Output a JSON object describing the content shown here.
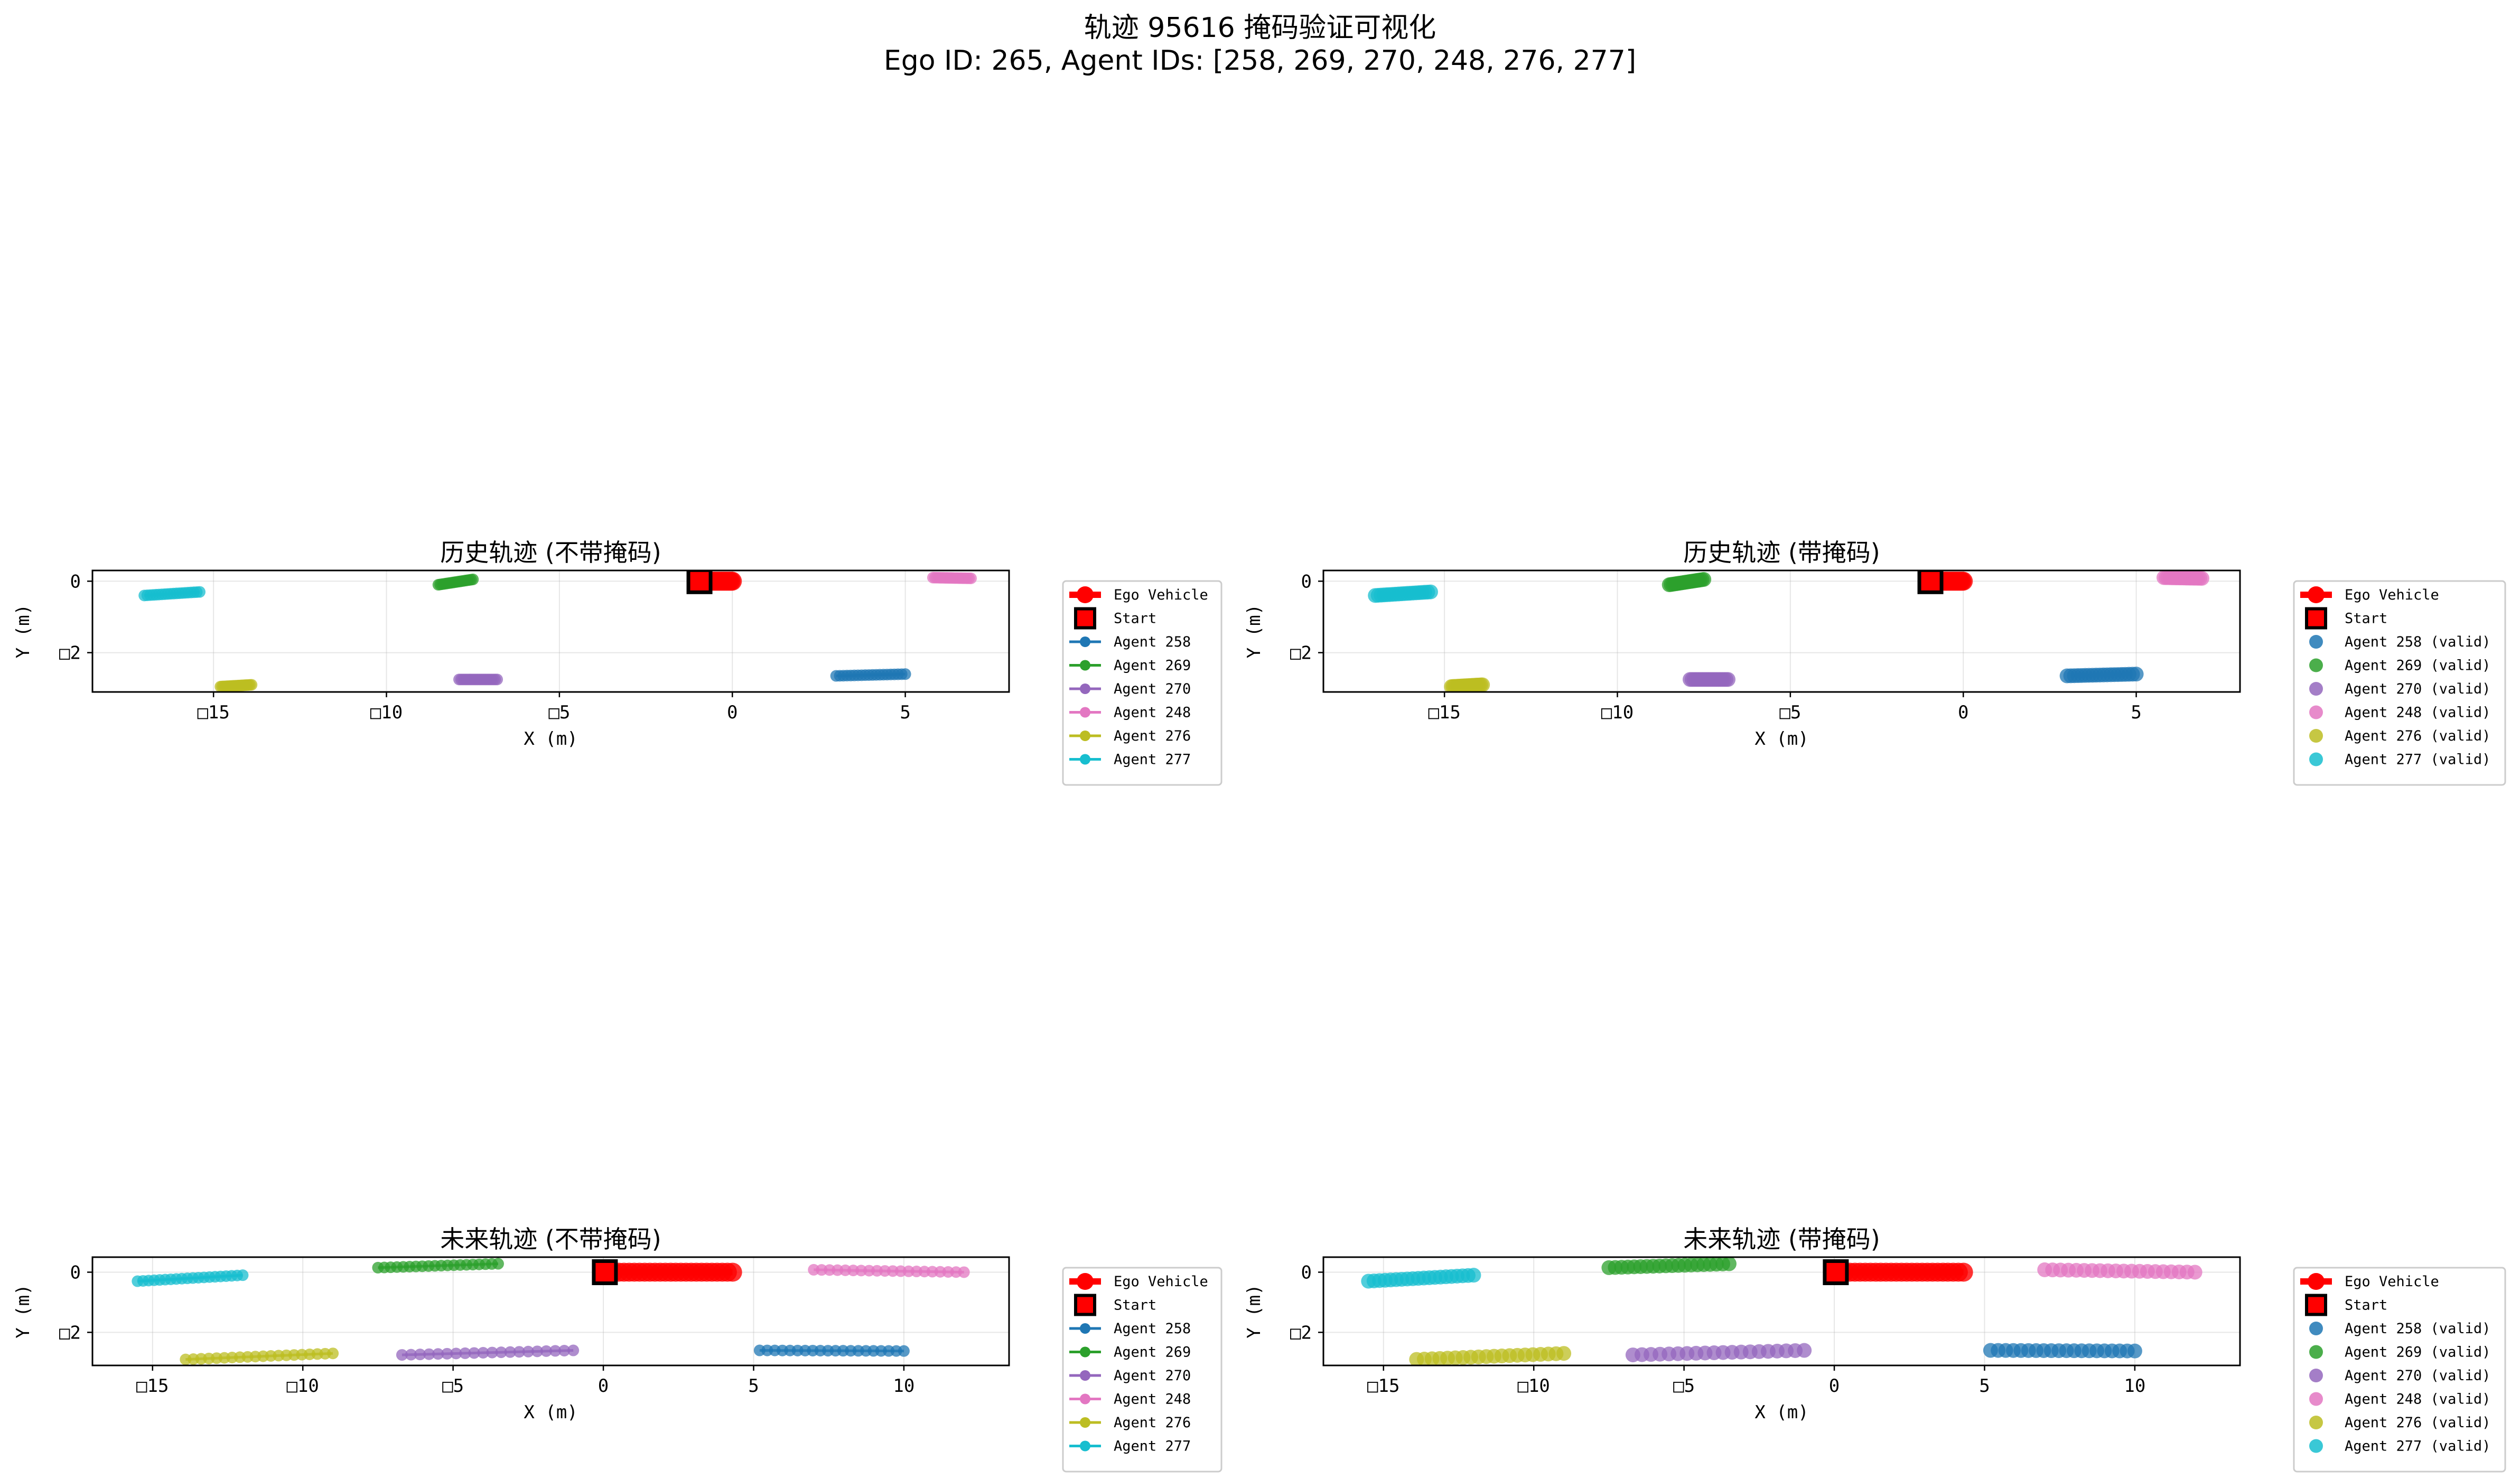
{
  "figure": {
    "title_line1": "轨迹 95616 掩码验证可视化",
    "title_line2": "Ego ID: 265, Agent IDs: [258, 269, 270, 248, 276, 277]"
  },
  "colors": {
    "ego": "#ff0000",
    "start_fill": "#ff0000",
    "start_edge": "#000000",
    "agents": {
      "258": "#1f77b4",
      "269": "#2ca02c",
      "270": "#9467bd",
      "248": "#e377c2",
      "276": "#bcbd22",
      "277": "#17becf"
    }
  },
  "chart_data": [
    {
      "type": "line",
      "title": "历史轨迹 (不带掩码)",
      "xlabel": "X (m)",
      "ylabel": "Y (m)",
      "xlim": [
        -18.5,
        8
      ],
      "ylim": [
        -3.1,
        0.3
      ],
      "xticks": [
        -15,
        -10,
        -5,
        0,
        5
      ],
      "xtick_labels": [
        "□15",
        "□10",
        "□5",
        "0",
        "5"
      ],
      "yticks": [
        0,
        -2
      ],
      "ytick_labels": [
        "0",
        "□2"
      ],
      "grid": true,
      "legend_placement": "outside-right",
      "legend": [
        "Ego Vehicle",
        "Start",
        "Agent 258",
        "Agent 269",
        "Agent 270",
        "Agent 248",
        "Agent 276",
        "Agent 277"
      ],
      "ego": {
        "x_start": -1.0,
        "x_end": 0.0,
        "y": 0.0
      },
      "start": {
        "x": -0.95,
        "y": 0.0
      },
      "series": [
        {
          "name": "Agent 258",
          "x_start": 3.0,
          "x_end": 5.0,
          "y_start": -2.65,
          "y_end": -2.6
        },
        {
          "name": "Agent 269",
          "x_start": -8.5,
          "x_end": -7.5,
          "y_start": -0.1,
          "y_end": 0.05
        },
        {
          "name": "Agent 270",
          "x_start": -7.9,
          "x_end": -6.8,
          "y_start": -2.75,
          "y_end": -2.75
        },
        {
          "name": "Agent 248",
          "x_start": 5.8,
          "x_end": 6.9,
          "y_start": 0.1,
          "y_end": 0.08
        },
        {
          "name": "Agent 276",
          "x_start": -14.8,
          "x_end": -13.9,
          "y_start": -2.95,
          "y_end": -2.9
        },
        {
          "name": "Agent 277",
          "x_start": -17.0,
          "x_end": -15.4,
          "y_start": -0.4,
          "y_end": -0.3
        }
      ]
    },
    {
      "type": "scatter",
      "title": "历史轨迹 (带掩码)",
      "xlabel": "X (m)",
      "ylabel": "Y (m)",
      "xlim": [
        -18.5,
        8
      ],
      "ylim": [
        -3.1,
        0.3
      ],
      "xticks": [
        -15,
        -10,
        -5,
        0,
        5
      ],
      "xtick_labels": [
        "□15",
        "□10",
        "□5",
        "0",
        "5"
      ],
      "yticks": [
        0,
        -2
      ],
      "ytick_labels": [
        "0",
        "□2"
      ],
      "grid": true,
      "legend_placement": "outside-right",
      "legend": [
        "Ego Vehicle",
        "Start",
        "Agent 258 (valid)",
        "Agent 269 (valid)",
        "Agent 270 (valid)",
        "Agent 248 (valid)",
        "Agent 276 (valid)",
        "Agent 277 (valid)"
      ],
      "ego": {
        "x_start": -1.0,
        "x_end": 0.0,
        "y": 0.0
      },
      "start": {
        "x": -0.95,
        "y": 0.0
      },
      "series": [
        {
          "name": "Agent 258 (valid)",
          "x_start": 3.0,
          "x_end": 5.0,
          "y_start": -2.65,
          "y_end": -2.6
        },
        {
          "name": "Agent 269 (valid)",
          "x_start": -8.5,
          "x_end": -7.5,
          "y_start": -0.1,
          "y_end": 0.05
        },
        {
          "name": "Agent 270 (valid)",
          "x_start": -7.9,
          "x_end": -6.8,
          "y_start": -2.75,
          "y_end": -2.75
        },
        {
          "name": "Agent 248 (valid)",
          "x_start": 5.8,
          "x_end": 6.9,
          "y_start": 0.1,
          "y_end": 0.08
        },
        {
          "name": "Agent 276 (valid)",
          "x_start": -14.8,
          "x_end": -13.9,
          "y_start": -2.95,
          "y_end": -2.9
        },
        {
          "name": "Agent 277 (valid)",
          "x_start": -17.0,
          "x_end": -15.4,
          "y_start": -0.4,
          "y_end": -0.3
        }
      ]
    },
    {
      "type": "line",
      "title": "未来轨迹 (不带掩码)",
      "xlabel": "X (m)",
      "ylabel": "Y (m)",
      "xlim": [
        -17,
        13.5
      ],
      "ylim": [
        -3.1,
        0.5
      ],
      "xticks": [
        -15,
        -10,
        -5,
        0,
        5,
        10
      ],
      "xtick_labels": [
        "□15",
        "□10",
        "□5",
        "0",
        "5",
        "10"
      ],
      "yticks": [
        0,
        -2
      ],
      "ytick_labels": [
        "0",
        "□2"
      ],
      "grid": true,
      "legend_placement": "outside-right",
      "legend": [
        "Ego Vehicle",
        "Start",
        "Agent 258",
        "Agent 269",
        "Agent 270",
        "Agent 248",
        "Agent 276",
        "Agent 277"
      ],
      "ego": {
        "x_start": 0.0,
        "x_end": 4.3,
        "y": 0.0
      },
      "start": {
        "x": 0.05,
        "y": 0.0
      },
      "series": [
        {
          "name": "Agent 258",
          "x_start": 5.2,
          "x_end": 10.0,
          "y_start": -2.6,
          "y_end": -2.62
        },
        {
          "name": "Agent 269",
          "x_start": -7.5,
          "x_end": -3.5,
          "y_start": 0.15,
          "y_end": 0.28
        },
        {
          "name": "Agent 270",
          "x_start": -6.7,
          "x_end": -1.0,
          "y_start": -2.75,
          "y_end": -2.6
        },
        {
          "name": "Agent 248",
          "x_start": 7.0,
          "x_end": 12.0,
          "y_start": 0.08,
          "y_end": 0.0
        },
        {
          "name": "Agent 276",
          "x_start": -13.9,
          "x_end": -9.0,
          "y_start": -2.9,
          "y_end": -2.7
        },
        {
          "name": "Agent 277",
          "x_start": -15.5,
          "x_end": -12.0,
          "y_start": -0.3,
          "y_end": -0.1
        }
      ]
    },
    {
      "type": "scatter",
      "title": "未来轨迹 (带掩码)",
      "xlabel": "X (m)",
      "ylabel": "Y (m)",
      "xlim": [
        -17,
        13.5
      ],
      "ylim": [
        -3.1,
        0.5
      ],
      "xticks": [
        -15,
        -10,
        -5,
        0,
        5,
        10
      ],
      "xtick_labels": [
        "□15",
        "□10",
        "□5",
        "0",
        "5",
        "10"
      ],
      "yticks": [
        0,
        -2
      ],
      "ytick_labels": [
        "0",
        "□2"
      ],
      "grid": true,
      "legend_placement": "outside-right",
      "legend": [
        "Ego Vehicle",
        "Start",
        "Agent 258 (valid)",
        "Agent 269 (valid)",
        "Agent 270 (valid)",
        "Agent 248 (valid)",
        "Agent 276 (valid)",
        "Agent 277 (valid)"
      ],
      "ego": {
        "x_start": 0.0,
        "x_end": 4.3,
        "y": 0.0
      },
      "start": {
        "x": 0.05,
        "y": 0.0
      },
      "series": [
        {
          "name": "Agent 258 (valid)",
          "x_start": 5.2,
          "x_end": 10.0,
          "y_start": -2.6,
          "y_end": -2.62
        },
        {
          "name": "Agent 269 (valid)",
          "x_start": -7.5,
          "x_end": -3.5,
          "y_start": 0.15,
          "y_end": 0.28
        },
        {
          "name": "Agent 270 (valid)",
          "x_start": -6.7,
          "x_end": -1.0,
          "y_start": -2.75,
          "y_end": -2.6
        },
        {
          "name": "Agent 248 (valid)",
          "x_start": 7.0,
          "x_end": 12.0,
          "y_start": 0.08,
          "y_end": 0.0
        },
        {
          "name": "Agent 276 (valid)",
          "x_start": -13.9,
          "x_end": -9.0,
          "y_start": -2.9,
          "y_end": -2.7
        },
        {
          "name": "Agent 277 (valid)",
          "x_start": -15.5,
          "x_end": -12.0,
          "y_start": -0.3,
          "y_end": -0.1
        }
      ]
    }
  ]
}
